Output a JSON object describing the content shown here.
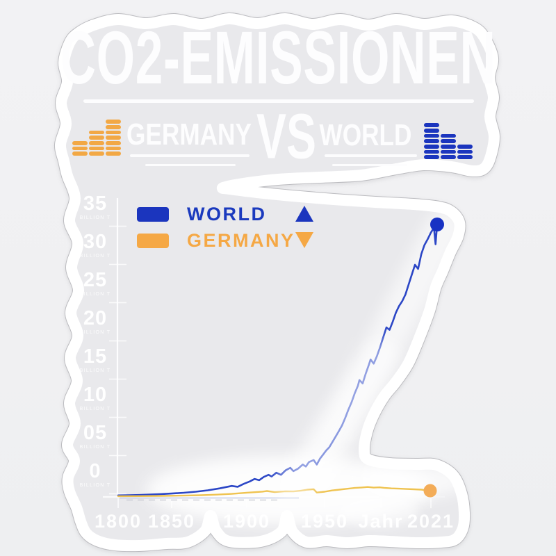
{
  "sticker": {
    "title": "CO2-EMISSIONEN",
    "subtitle": {
      "left": "GERMANY",
      "vs": "VS",
      "right": "WORLD"
    },
    "colors": {
      "page_background": "#F1F1F3",
      "sticker_fill": "#E9E9EC",
      "border": "#FFFFFF",
      "contour": "#BCBCC0",
      "text": "#FDFDFE",
      "germany_accent": "#F2A845",
      "world_accent": "#1B35BE"
    },
    "icons": {
      "left": {
        "name": "equalizer-bars-ascending",
        "columns": [
          3,
          5,
          7
        ],
        "color": "#F2A845"
      },
      "right": {
        "name": "equalizer-bars-descending",
        "columns": [
          7,
          5,
          3
        ],
        "color": "#1B35BE"
      }
    }
  },
  "legend": [
    {
      "label": "WORLD",
      "color": "#1B3ABE",
      "swatch": "#1B35BE",
      "marker": "triangle-up"
    },
    {
      "label": "GERMANY",
      "color": "#F5A845",
      "swatch": "#F5A845",
      "marker": "triangle-down"
    }
  ],
  "chart_data": {
    "type": "line",
    "title": "",
    "xlabel": "Jahr",
    "ylabel": "BILLION T",
    "x_tick_labels": [
      "1800",
      "1850",
      "1900",
      "1950",
      "Jahr",
      "2021"
    ],
    "y_tick_labels": [
      "35",
      "30",
      "25",
      "20",
      "15",
      "10",
      "05",
      "0"
    ],
    "y_unit": "BILLION T",
    "ylim": [
      0,
      35
    ],
    "xlim": [
      1800,
      2021
    ],
    "grid": false,
    "legend_position": "top-left",
    "series": [
      {
        "name": "WORLD",
        "color": "#2B46C6",
        "dot_color": "#1832C3",
        "points": [
          [
            1800,
            0.1
          ],
          [
            1810,
            0.12
          ],
          [
            1820,
            0.15
          ],
          [
            1830,
            0.2
          ],
          [
            1840,
            0.26
          ],
          [
            1850,
            0.33
          ],
          [
            1858,
            0.42
          ],
          [
            1866,
            0.55
          ],
          [
            1874,
            0.72
          ],
          [
            1882,
            0.95
          ],
          [
            1890,
            1.25
          ],
          [
            1894,
            1.15
          ],
          [
            1898,
            1.5
          ],
          [
            1902,
            1.8
          ],
          [
            1905,
            2.1
          ],
          [
            1908,
            1.95
          ],
          [
            1911,
            2.35
          ],
          [
            1914,
            2.6
          ],
          [
            1916,
            2.4
          ],
          [
            1919,
            2.85
          ],
          [
            1922,
            2.6
          ],
          [
            1925,
            3.15
          ],
          [
            1928,
            3.45
          ],
          [
            1930,
            3.05
          ],
          [
            1933,
            3.35
          ],
          [
            1936,
            3.85
          ],
          [
            1938,
            3.6
          ],
          [
            1940,
            4.15
          ],
          [
            1943,
            4.4
          ],
          [
            1945,
            3.85
          ],
          [
            1947,
            4.55
          ],
          [
            1949,
            5.05
          ],
          [
            1951,
            5.55
          ],
          [
            1953,
            5.95
          ],
          [
            1955,
            6.6
          ],
          [
            1957,
            7.25
          ],
          [
            1959,
            7.9
          ],
          [
            1961,
            8.6
          ],
          [
            1963,
            9.5
          ],
          [
            1965,
            10.5
          ],
          [
            1967,
            11.4
          ],
          [
            1969,
            12.5
          ],
          [
            1971,
            13.4
          ],
          [
            1972,
            14.1
          ],
          [
            1974,
            13.7
          ],
          [
            1976,
            14.9
          ],
          [
            1978,
            16.0
          ],
          [
            1979,
            16.6
          ],
          [
            1981,
            16.1
          ],
          [
            1983,
            17.0
          ],
          [
            1985,
            18.1
          ],
          [
            1987,
            19.3
          ],
          [
            1989,
            20.5
          ],
          [
            1991,
            20.2
          ],
          [
            1993,
            21.2
          ],
          [
            1995,
            22.3
          ],
          [
            1997,
            23.1
          ],
          [
            1999,
            23.7
          ],
          [
            2001,
            24.5
          ],
          [
            2003,
            25.7
          ],
          [
            2005,
            26.9
          ],
          [
            2007,
            28.1
          ],
          [
            2009,
            27.6
          ],
          [
            2011,
            29.4
          ],
          [
            2013,
            30.5
          ],
          [
            2015,
            31.2
          ],
          [
            2017,
            32.0
          ],
          [
            2019,
            32.6
          ],
          [
            2020,
            30.6
          ],
          [
            2021,
            33.0
          ]
        ]
      },
      {
        "name": "GERMANY",
        "color": "#EFC350",
        "dot_color": "#F3AC58",
        "points": [
          [
            1800,
            0.01
          ],
          [
            1820,
            0.02
          ],
          [
            1840,
            0.04
          ],
          [
            1850,
            0.06
          ],
          [
            1860,
            0.09
          ],
          [
            1870,
            0.13
          ],
          [
            1880,
            0.19
          ],
          [
            1890,
            0.29
          ],
          [
            1900,
            0.43
          ],
          [
            1910,
            0.56
          ],
          [
            1913,
            0.63
          ],
          [
            1918,
            0.5
          ],
          [
            1925,
            0.6
          ],
          [
            1930,
            0.58
          ],
          [
            1935,
            0.68
          ],
          [
            1939,
            0.8
          ],
          [
            1943,
            0.85
          ],
          [
            1945,
            0.45
          ],
          [
            1950,
            0.55
          ],
          [
            1955,
            0.7
          ],
          [
            1960,
            0.8
          ],
          [
            1965,
            0.9
          ],
          [
            1970,
            1.0
          ],
          [
            1975,
            1.06
          ],
          [
            1979,
            1.12
          ],
          [
            1983,
            1.05
          ],
          [
            1987,
            1.08
          ],
          [
            1990,
            1.02
          ],
          [
            1995,
            0.95
          ],
          [
            2000,
            0.92
          ],
          [
            2005,
            0.88
          ],
          [
            2010,
            0.84
          ],
          [
            2015,
            0.8
          ],
          [
            2019,
            0.71
          ],
          [
            2020,
            0.64
          ],
          [
            2021,
            0.67
          ]
        ]
      }
    ]
  }
}
